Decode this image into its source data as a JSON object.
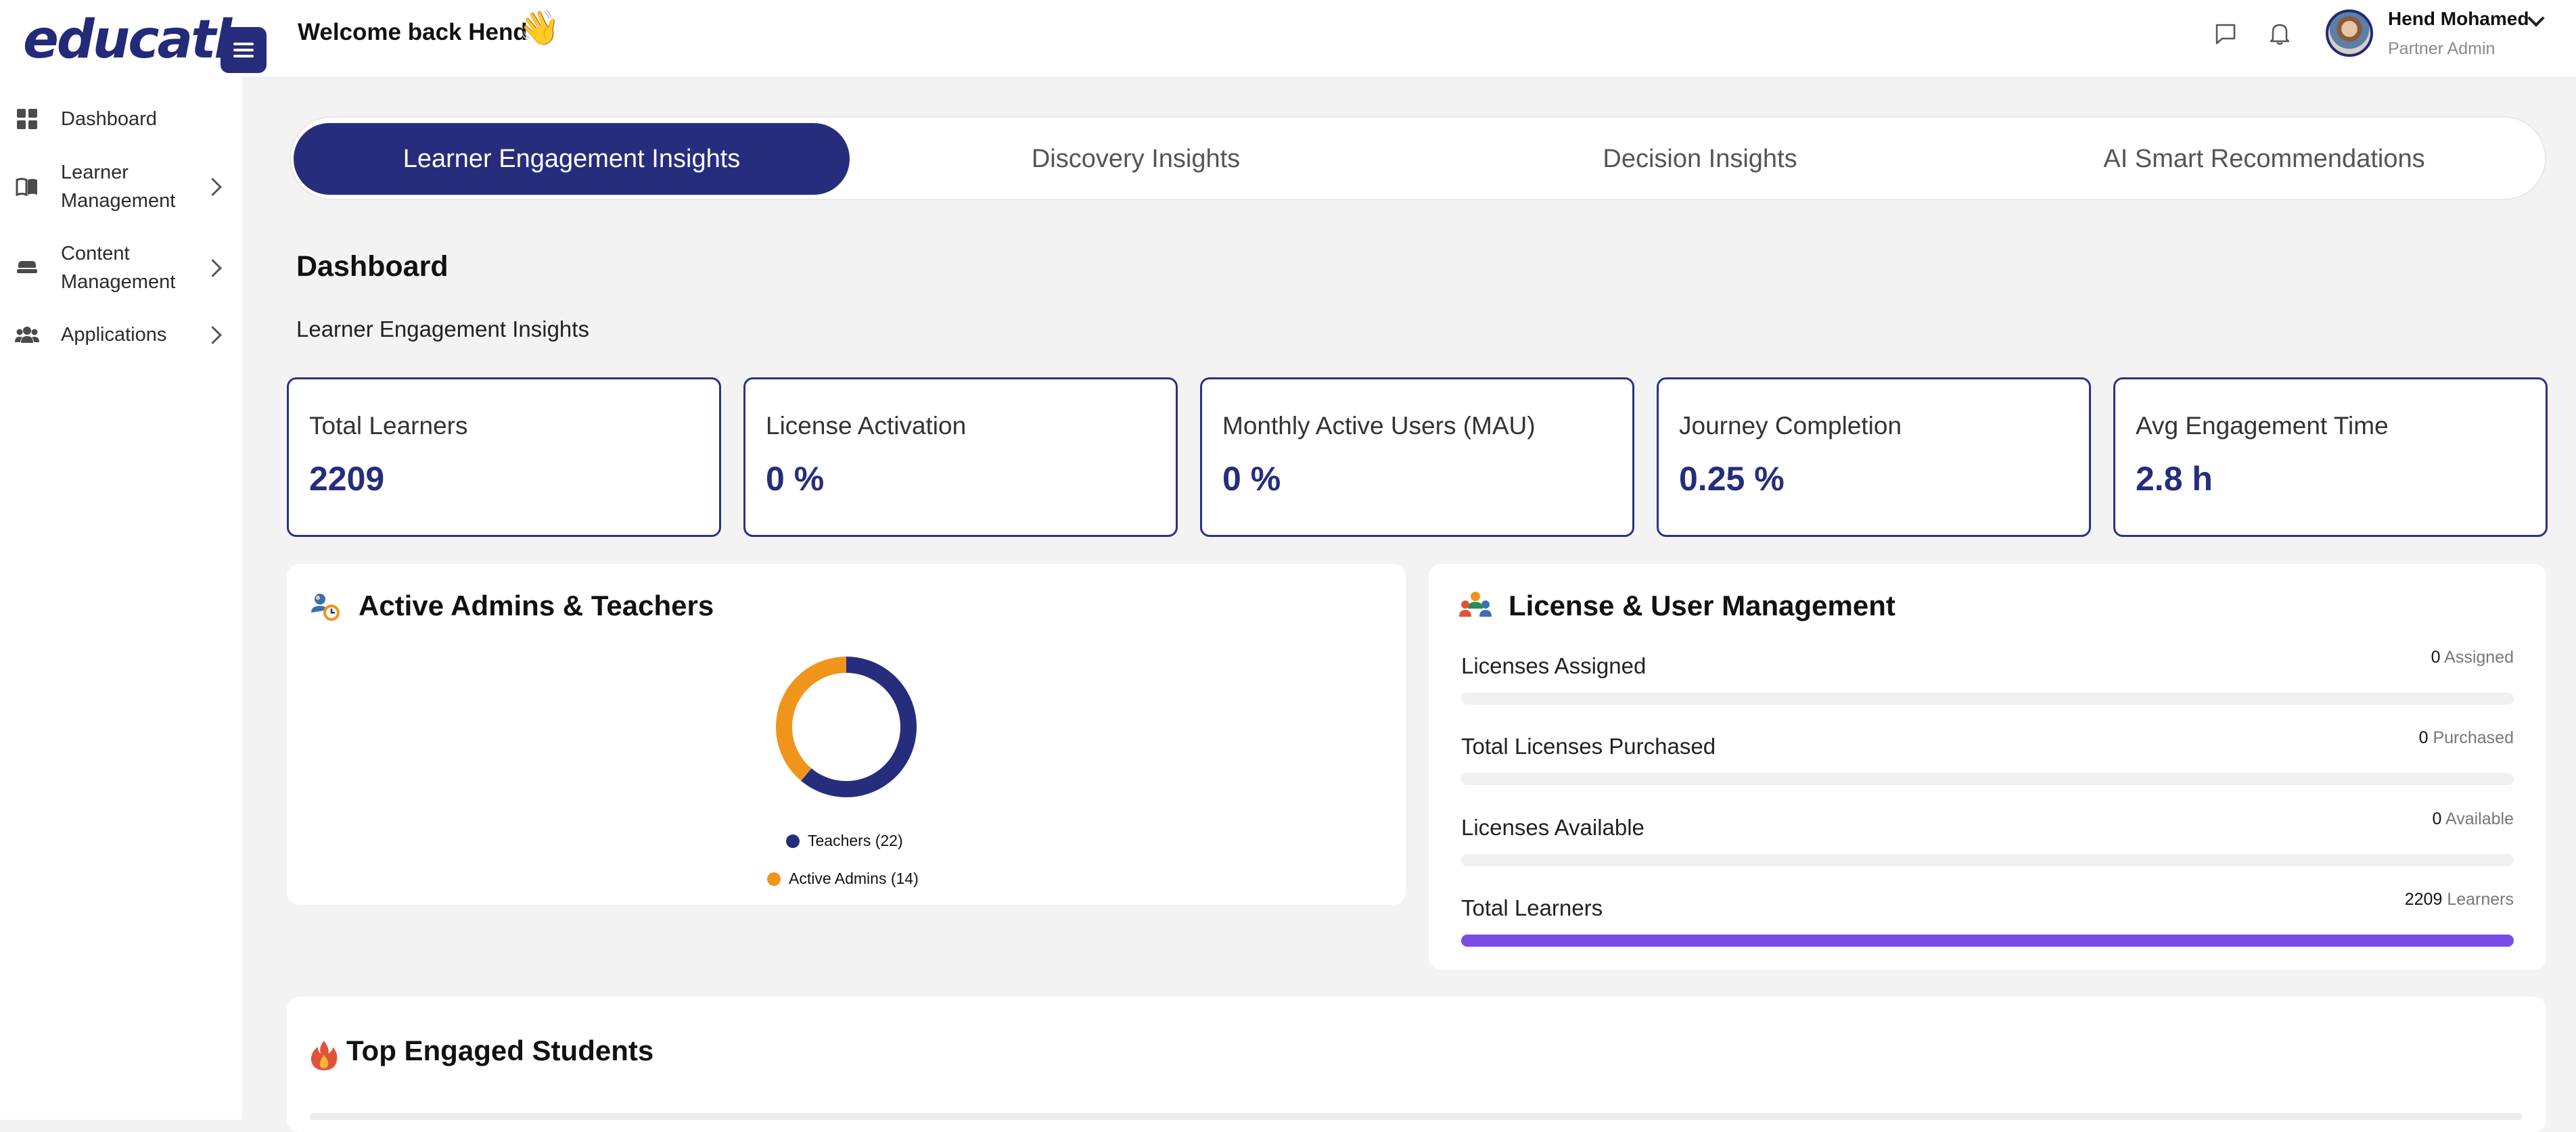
{
  "app": {
    "logo_text": "educatly"
  },
  "sidebar": {
    "items": [
      {
        "label": "Dashboard",
        "icon": "dashboard-grid-icon",
        "has_children": false
      },
      {
        "label": "Learner\nManagement",
        "line1": "Learner",
        "line2": "Management",
        "icon": "book-icon",
        "has_children": true
      },
      {
        "label": "Content\nManagement",
        "line1": "Content",
        "line2": "Management",
        "icon": "layers-icon",
        "has_children": true
      },
      {
        "label": "Applications",
        "icon": "users-icon",
        "has_children": true
      }
    ]
  },
  "header": {
    "welcome": "Welcome back Hend",
    "wave_emoji": "👋",
    "user": {
      "name": "Hend Mohamed",
      "role": "Partner Admin"
    }
  },
  "tabs": [
    {
      "label": "Learner Engagement Insights",
      "active": true
    },
    {
      "label": "Discovery Insights",
      "active": false
    },
    {
      "label": "Decision Insights",
      "active": false
    },
    {
      "label": "AI Smart Recommendations",
      "active": false
    }
  ],
  "page": {
    "title": "Dashboard",
    "subtitle": "Learner Engagement Insights"
  },
  "stats": [
    {
      "label": "Total Learners",
      "value": "2209"
    },
    {
      "label": "License Activation",
      "value": "0 %"
    },
    {
      "label": "Monthly Active Users (MAU)",
      "value": "0 %"
    },
    {
      "label": "Journey Completion",
      "value": "0.25 %"
    },
    {
      "label": "Avg Engagement Time",
      "value": "2.8 h"
    }
  ],
  "admins_panel": {
    "title": "Active Admins & Teachers",
    "chart_data": {
      "type": "pie",
      "donut": true,
      "categories": [
        "Teachers",
        "Active Admins"
      ],
      "values": [
        22,
        14
      ],
      "colors": [
        "#262d7c",
        "#f0951c"
      ],
      "legend_labels": [
        "Teachers (22)",
        "Active Admins (14)"
      ],
      "legend": "bottom"
    }
  },
  "license_panel": {
    "title": "License & User Management",
    "rows": [
      {
        "label": "Licenses Assigned",
        "count": "0",
        "unit": "Assigned",
        "fill": 0
      },
      {
        "label": "Total Licenses Purchased",
        "count": "0",
        "unit": "Purchased",
        "fill": 0
      },
      {
        "label": "Licenses Available",
        "count": "0",
        "unit": "Available",
        "fill": 0
      },
      {
        "label": "Total Learners",
        "count": "2209",
        "unit": "Learners",
        "fill": 1
      }
    ],
    "fill_color": "#7b4ce6"
  },
  "top_students_panel": {
    "title": "Top Engaged Students"
  }
}
